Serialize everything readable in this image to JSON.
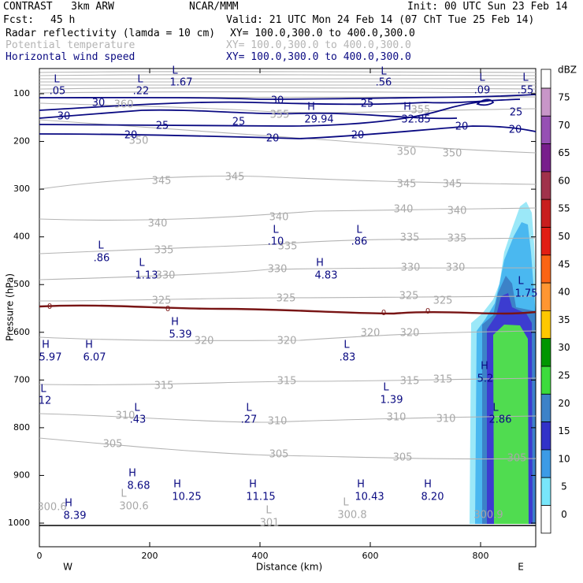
{
  "header": {
    "model": "CONTRAST   3km ARW",
    "center": "NCAR/MMM",
    "init": "Init: 00 UTC Sun 23 Feb 14",
    "fcst_label": "Fcst:",
    "fcst_value": "45 h",
    "valid": "Valid: 21 UTC Mon 24 Feb 14 (07 ChT Tue 25 Feb 14)"
  },
  "fields": [
    {
      "name": "Radar reflectivity (lamda = 10 cm)",
      "xy": "XY= 100.0,300.0 to 400.0,300.0",
      "color": "#000000"
    },
    {
      "name": "Potential temperature",
      "xy": "XY= 100.0,300.0 to 400.0,300.0",
      "color": "#b4b4b4"
    },
    {
      "name": "Horizontal wind speed",
      "xy": "XY= 100.0,300.0 to 400.0,300.0",
      "color": "#0a0a82"
    }
  ],
  "chart_data": {
    "type": "cross-section",
    "xlabel": "Distance (km)",
    "ylabel": "Pressure (hPa)",
    "xlim": [
      0,
      900
    ],
    "ylim": [
      1050,
      50
    ],
    "x_ticks": [
      0,
      200,
      400,
      600,
      800
    ],
    "y_ticks": [
      100,
      200,
      300,
      400,
      500,
      600,
      700,
      800,
      900,
      1000
    ],
    "endpoints": {
      "west": "W",
      "east": "E"
    },
    "colorbar": {
      "unit": "dBZ",
      "levels": [
        75,
        70,
        65,
        60,
        55,
        50,
        45,
        40,
        35,
        30,
        25,
        20,
        15,
        10,
        5,
        0
      ],
      "colors": [
        "#c896c8",
        "#9650b4",
        "#781e8c",
        "#a0324b",
        "#c81e1e",
        "#e11e14",
        "#fa6414",
        "#ff9632",
        "#ffc800",
        "#009600",
        "#3cdc3c",
        "#3c82c8",
        "#3232c8",
        "#3c9be6",
        "#78e6fa",
        "#ffffff"
      ]
    },
    "reflectivity_colors": {
      "light": "#9be8f8",
      "cyan": "#4ab8f0",
      "steel": "#3c82c8",
      "blue": "#3c3cd0",
      "green": "#50dc50"
    },
    "theta_labels": [
      {
        "v": "360",
        "x": 157,
        "y": 133
      },
      {
        "v": "355",
        "x": 355,
        "y": 146
      },
      {
        "v": "355",
        "x": 534,
        "y": 140
      },
      {
        "v": "350",
        "x": 176,
        "y": 179
      },
      {
        "v": "350",
        "x": 516,
        "y": 193
      },
      {
        "v": "350",
        "x": 574,
        "y": 195
      },
      {
        "v": "345",
        "x": 205,
        "y": 230
      },
      {
        "v": "345",
        "x": 298,
        "y": 225
      },
      {
        "v": "345",
        "x": 516,
        "y": 234
      },
      {
        "v": "345",
        "x": 574,
        "y": 234
      },
      {
        "v": "340",
        "x": 200,
        "y": 284
      },
      {
        "v": "340",
        "x": 354,
        "y": 276
      },
      {
        "v": "340",
        "x": 512,
        "y": 266
      },
      {
        "v": "340",
        "x": 580,
        "y": 268
      },
      {
        "v": "335",
        "x": 208,
        "y": 318
      },
      {
        "v": "335",
        "x": 365,
        "y": 313
      },
      {
        "v": "335",
        "x": 520,
        "y": 302
      },
      {
        "v": "335",
        "x": 580,
        "y": 303
      },
      {
        "v": "330",
        "x": 210,
        "y": 350
      },
      {
        "v": "330",
        "x": 352,
        "y": 342
      },
      {
        "v": "330",
        "x": 521,
        "y": 340
      },
      {
        "v": "330",
        "x": 578,
        "y": 340
      },
      {
        "v": "325",
        "x": 205,
        "y": 382
      },
      {
        "v": "325",
        "x": 363,
        "y": 379
      },
      {
        "v": "325",
        "x": 519,
        "y": 376
      },
      {
        "v": "325",
        "x": 562,
        "y": 382
      },
      {
        "v": "320",
        "x": 259,
        "y": 433
      },
      {
        "v": "320",
        "x": 364,
        "y": 433
      },
      {
        "v": "320",
        "x": 470,
        "y": 423
      },
      {
        "v": "320",
        "x": 520,
        "y": 423
      },
      {
        "v": "315",
        "x": 208,
        "y": 490
      },
      {
        "v": "315",
        "x": 364,
        "y": 484
      },
      {
        "v": "315",
        "x": 520,
        "y": 484
      },
      {
        "v": "315",
        "x": 562,
        "y": 482
      },
      {
        "v": "310",
        "x": 159,
        "y": 528
      },
      {
        "v": "310",
        "x": 352,
        "y": 535
      },
      {
        "v": "310",
        "x": 503,
        "y": 530
      },
      {
        "v": "310",
        "x": 566,
        "y": 532
      },
      {
        "v": "305",
        "x": 143,
        "y": 564
      },
      {
        "v": "305",
        "x": 354,
        "y": 577
      },
      {
        "v": "305",
        "x": 511,
        "y": 581
      },
      {
        "v": "305",
        "x": 656,
        "y": 582
      },
      {
        "v": "300.6",
        "x": 66,
        "y": 644
      },
      {
        "v": "300.9",
        "x": 620,
        "y": 654
      }
    ],
    "wind_labels": [
      {
        "v": "30",
        "x": 125,
        "y": 131
      },
      {
        "v": "30",
        "x": 352,
        "y": 128
      },
      {
        "v": "30",
        "x": 81,
        "y": 148
      },
      {
        "v": "25",
        "x": 466,
        "y": 132
      },
      {
        "v": "25",
        "x": 206,
        "y": 160
      },
      {
        "v": "25",
        "x": 303,
        "y": 155
      },
      {
        "v": "25",
        "x": 655,
        "y": 143
      },
      {
        "v": "20",
        "x": 166,
        "y": 172
      },
      {
        "v": "20",
        "x": 346,
        "y": 176
      },
      {
        "v": "20",
        "x": 454,
        "y": 172
      },
      {
        "v": "20",
        "x": 586,
        "y": 161
      },
      {
        "v": "20",
        "x": 654,
        "y": 165
      }
    ],
    "zero_labels": [
      {
        "v": "0",
        "x": 63,
        "y": 389
      },
      {
        "v": "0",
        "x": 213,
        "y": 392
      },
      {
        "v": "0",
        "x": 487,
        "y": 397
      },
      {
        "v": "0",
        "x": 543,
        "y": 395
      }
    ],
    "extrema": [
      {
        "t": "L",
        "v": ".05",
        "tx": 72,
        "ty": 101,
        "vx": 73,
        "vy": 116
      },
      {
        "t": "L",
        "v": ".22",
        "tx": 178,
        "ty": 101,
        "vx": 179,
        "vy": 116
      },
      {
        "t": "L",
        "v": "1.67",
        "tx": 222,
        "ty": 90,
        "vx": 230,
        "vy": 105
      },
      {
        "t": "L",
        "v": ".56",
        "tx": 487,
        "ty": 91,
        "vx": 487,
        "vy": 105
      },
      {
        "t": "L",
        "v": ".09",
        "tx": 612,
        "ty": 99,
        "vx": 612,
        "vy": 115
      },
      {
        "t": "L",
        "v": ".55",
        "tx": 667,
        "ty": 99,
        "vx": 667,
        "vy": 115
      },
      {
        "t": "H",
        "v": "29.94",
        "tx": 395,
        "ty": 136,
        "vx": 405,
        "vy": 152
      },
      {
        "t": "H",
        "v": "32.85",
        "tx": 517,
        "ty": 136,
        "vx": 528,
        "vy": 152
      },
      {
        "t": "L",
        "v": ".86",
        "tx": 128,
        "ty": 312,
        "vx": 129,
        "vy": 328
      },
      {
        "t": "L",
        "v": ".10",
        "tx": 350,
        "ty": 292,
        "vx": 350,
        "vy": 307
      },
      {
        "t": "L",
        "v": ".86",
        "tx": 456,
        "ty": 292,
        "vx": 456,
        "vy": 307
      },
      {
        "t": "L",
        "v": "1.13",
        "tx": 180,
        "ty": 334,
        "vx": 186,
        "vy": 350
      },
      {
        "t": "H",
        "v": "4.83",
        "tx": 406,
        "ty": 334,
        "vx": 414,
        "vy": 350
      },
      {
        "t": "L",
        "v": "1.75",
        "tx": 661,
        "ty": 357,
        "vx": 668,
        "vy": 373
      },
      {
        "t": "H",
        "v": "5.39",
        "tx": 222,
        "ty": 409,
        "vx": 229,
        "vy": 425
      },
      {
        "t": "H",
        "v": "5.97",
        "tx": 58,
        "ty": 438,
        "vx": 64,
        "vy": 454
      },
      {
        "t": "H",
        "v": "6.07",
        "tx": 113,
        "ty": 438,
        "vx": 120,
        "vy": 454
      },
      {
        "t": "L",
        "v": ".83",
        "tx": 440,
        "ty": 438,
        "vx": 441,
        "vy": 454
      },
      {
        "t": "H",
        "v": "5.2",
        "tx": 615,
        "ty": 465,
        "vx": 616,
        "vy": 481
      },
      {
        "t": "L",
        "v": "12",
        "tx": 55,
        "ty": 494,
        "vx": 57,
        "vy": 509
      },
      {
        "t": "L",
        "v": "1.39",
        "tx": 490,
        "ty": 492,
        "vx": 497,
        "vy": 508
      },
      {
        "t": "L",
        "v": ".43",
        "tx": 174,
        "ty": 518,
        "vx": 175,
        "vy": 533
      },
      {
        "t": "L",
        "v": ".27",
        "tx": 316,
        "ty": 518,
        "vx": 316,
        "vy": 533
      },
      {
        "t": "L",
        "v": "2.86",
        "tx": 629,
        "ty": 518,
        "vx": 635,
        "vy": 533
      },
      {
        "t": "H",
        "v": "8.68",
        "tx": 168,
        "ty": 601,
        "vx": 176,
        "vy": 617
      },
      {
        "t": "H",
        "v": "10.25",
        "tx": 225,
        "ty": 615,
        "vx": 237,
        "vy": 631
      },
      {
        "t": "H",
        "v": "11.15",
        "tx": 321,
        "ty": 615,
        "vx": 331,
        "vy": 631
      },
      {
        "t": "H",
        "v": "10.43",
        "tx": 458,
        "ty": 615,
        "vx": 469,
        "vy": 631
      },
      {
        "t": "H",
        "v": "8.20",
        "tx": 543,
        "ty": 615,
        "vx": 549,
        "vy": 631
      },
      {
        "t": "H",
        "v": "8.39",
        "tx": 87,
        "ty": 639,
        "vx": 95,
        "vy": 655
      }
    ],
    "theta_extrema": [
      {
        "t": "L",
        "v": "300.6",
        "tx": 157,
        "ty": 627,
        "vx": 170,
        "vy": 643
      },
      {
        "t": "L",
        "v": "301",
        "tx": 341,
        "ty": 648,
        "vx": 342,
        "vy": 664
      },
      {
        "t": "L",
        "v": "300.8",
        "tx": 439,
        "ty": 638,
        "vx": 447,
        "vy": 654
      }
    ]
  }
}
